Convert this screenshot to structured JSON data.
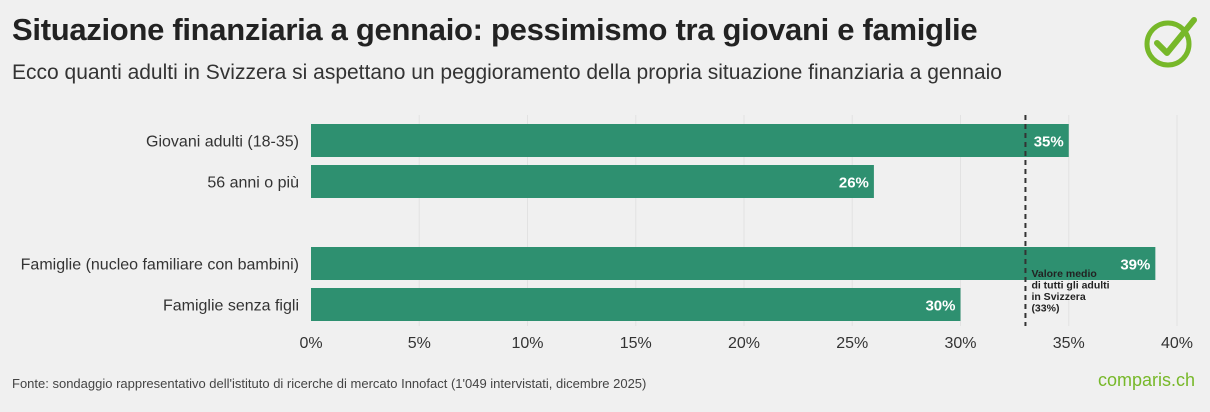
{
  "title": "Situazione finanziaria a gennaio: pessimismo tra giovani e famiglie",
  "subtitle": "Ecco quanti adulti in Svizzera si aspettano un peggioramento della propria situazione finanziaria a gennaio",
  "source": "Fonte: sondaggio rappresentativo dell'istituto di ricerche di mercato Innofact (1'049 intervistati, dicembre 2025)",
  "brand": "comparis.ch",
  "logo_icon": "checkmark-circle-icon",
  "colors": {
    "bar": "#2e9070",
    "brand": "#77b829",
    "background": "#f0f0f0"
  },
  "chart_data": {
    "type": "bar",
    "orientation": "horizontal",
    "categories": [
      "Giovani adulti (18-35)",
      "56 anni o più",
      "Famiglie (nucleo familiare con bambini)",
      "Famiglie senza figli"
    ],
    "values": [
      35,
      26,
      39,
      30
    ],
    "value_labels": [
      "35%",
      "26%",
      "39%",
      "30%"
    ],
    "groups": [
      [
        0,
        1
      ],
      [
        2,
        3
      ]
    ],
    "xlim": [
      0,
      40
    ],
    "x_ticks": [
      0,
      5,
      10,
      15,
      20,
      25,
      30,
      35,
      40
    ],
    "x_tick_labels": [
      "0%",
      "5%",
      "10%",
      "15%",
      "20%",
      "25%",
      "30%",
      "35%",
      "40%"
    ],
    "grid": true,
    "reference_line": {
      "value": 33,
      "label_lines": [
        "Valore medio",
        "di tutti gli adulti",
        "in Svizzera",
        "(33%)"
      ]
    }
  }
}
